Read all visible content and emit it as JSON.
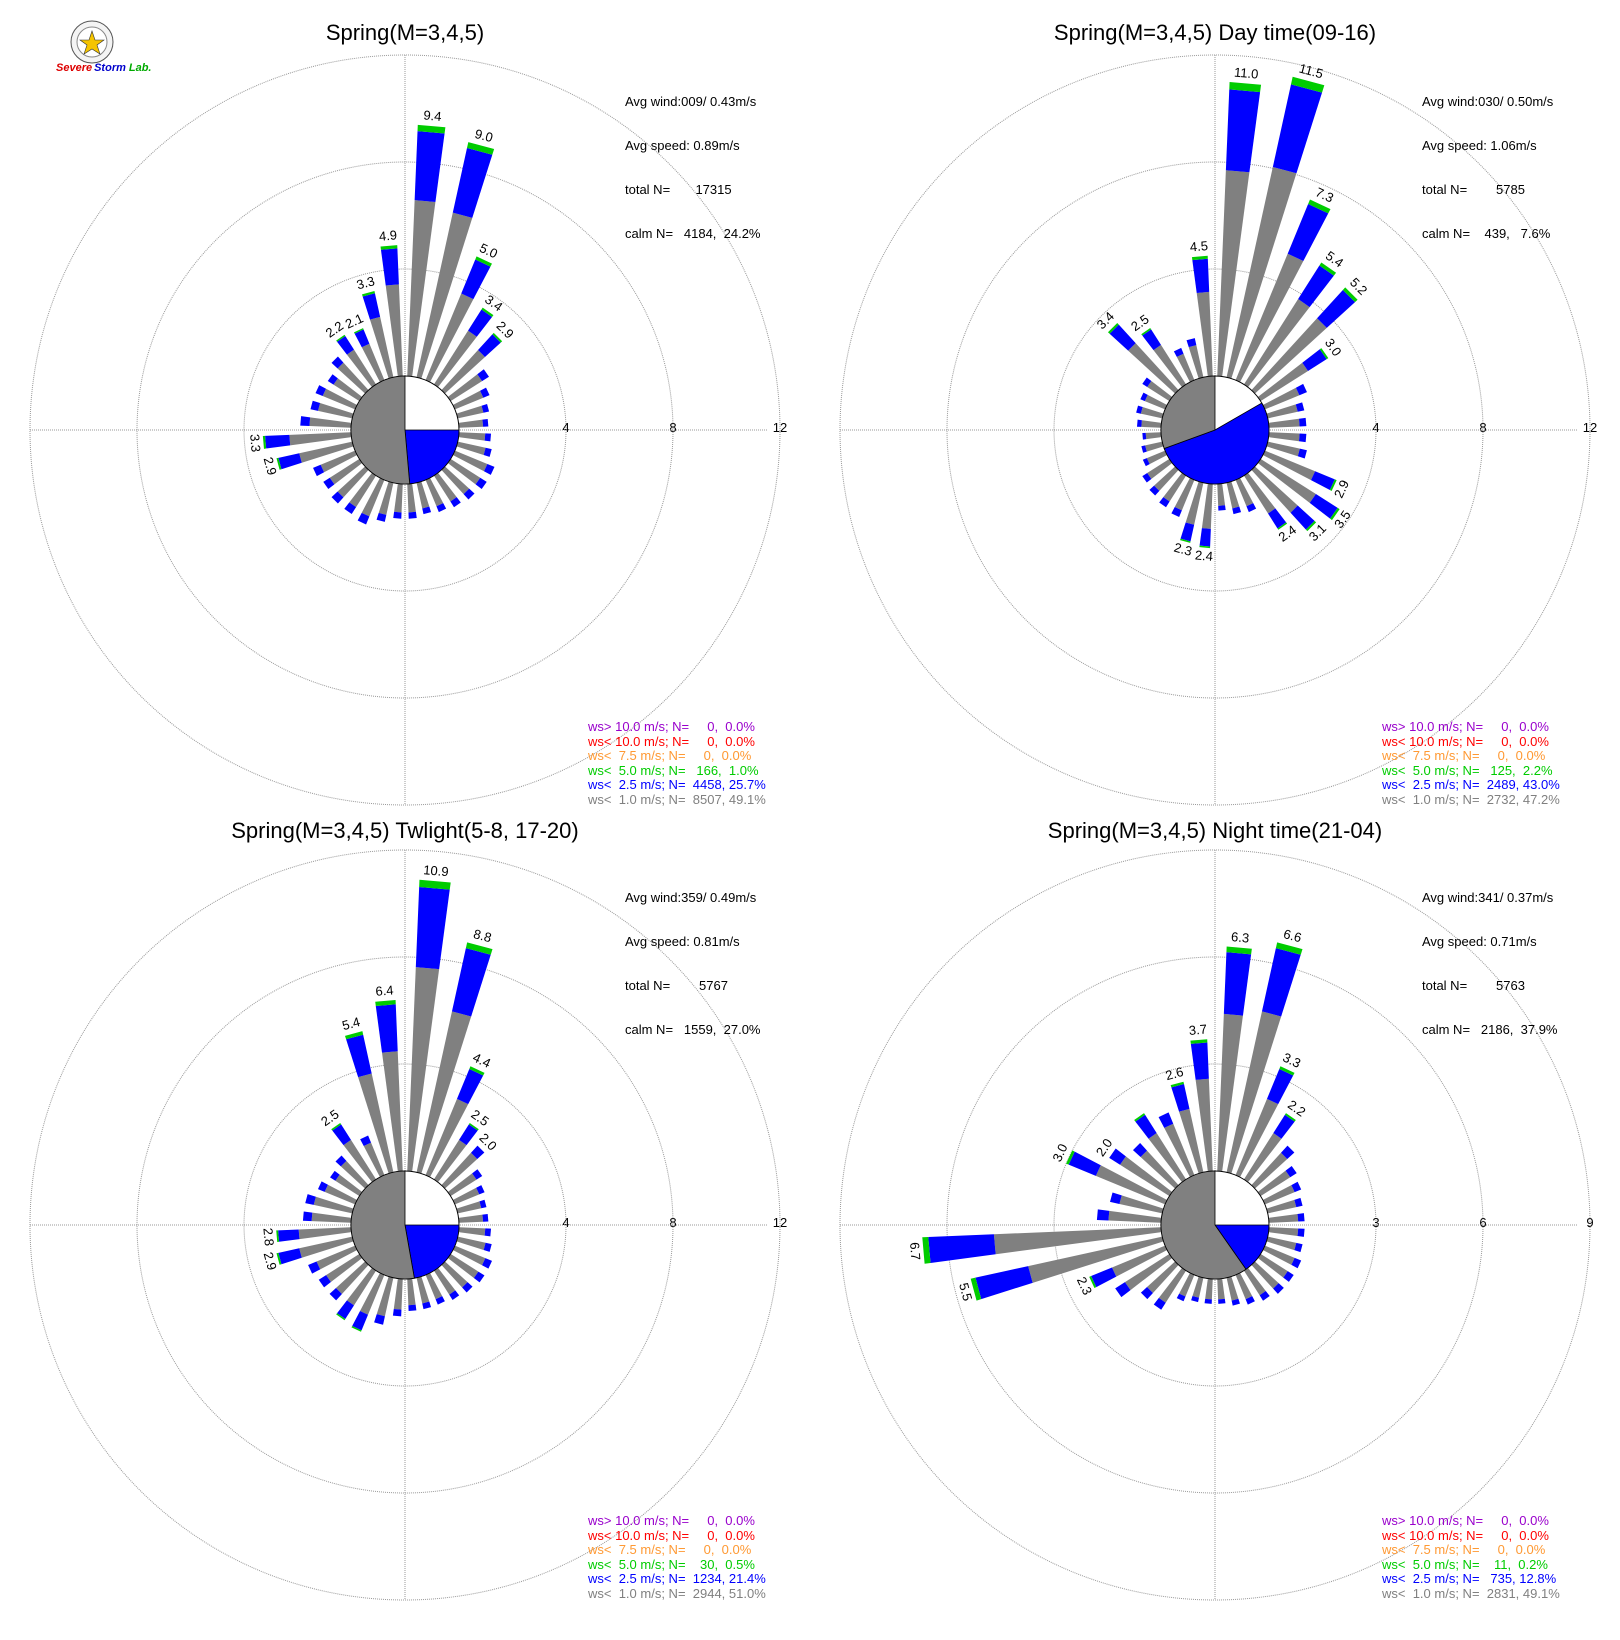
{
  "logo": {
    "text_severe": "Severe",
    "text_storm": "Storm",
    "text_lab": "Lab.",
    "colors": {
      "severe": "#dd0000",
      "storm": "#0000cc",
      "lab": "#00aa00"
    }
  },
  "colors": {
    "ws_lt_1": "#808080",
    "ws_lt_2_5": "#0000ff",
    "ws_lt_5": "#00cc00",
    "ws_lt_7_5": "#ff9933",
    "ws_lt_10": "#ff0000",
    "ws_gt_10": "#9900cc",
    "grid": "#666666"
  },
  "chart_data": [
    {
      "type": "polar-bar",
      "title": "Spring(M=3,4,5)",
      "stats": [
        "Avg wind:009/ 0.43m/s",
        "Avg speed: 0.89m/s",
        "total N=       17315",
        "calm N=   4184,  24.2%"
      ],
      "rings": [
        4,
        8,
        12
      ],
      "ring_labels": [
        "4",
        "8",
        "12"
      ],
      "calm_split": {
        "from": 90,
        "to": 175
      },
      "bars": [
        [
          5,
          9.4
        ],
        [
          15,
          9.0
        ],
        [
          25,
          5.0
        ],
        [
          35,
          3.4
        ],
        [
          45,
          2.9
        ],
        [
          55,
          1.7
        ],
        [
          65,
          1.4
        ],
        [
          75,
          1.2
        ],
        [
          85,
          1.1
        ],
        [
          95,
          1.2
        ],
        [
          105,
          1.3
        ],
        [
          115,
          1.6
        ],
        [
          125,
          1.6
        ],
        [
          135,
          1.5
        ],
        [
          145,
          1.4
        ],
        [
          155,
          1.3
        ],
        [
          165,
          1.2
        ],
        [
          175,
          1.3
        ],
        [
          185,
          1.3
        ],
        [
          195,
          1.5
        ],
        [
          205,
          1.8
        ],
        [
          215,
          1.7
        ],
        [
          225,
          1.7
        ],
        [
          235,
          1.6
        ],
        [
          245,
          1.7
        ],
        [
          255,
          2.9
        ],
        [
          265,
          3.3
        ],
        [
          275,
          1.9
        ],
        [
          285,
          1.6
        ],
        [
          295,
          1.6
        ],
        [
          305,
          1.4
        ],
        [
          315,
          1.7
        ],
        [
          325,
          2.2
        ],
        [
          335,
          2.1
        ],
        [
          345,
          3.3
        ],
        [
          355,
          4.9
        ]
      ],
      "bar_labels": [
        {
          "dir": 5,
          "text": "9.4"
        },
        {
          "dir": 15,
          "text": "9.0"
        },
        {
          "dir": 25,
          "text": "5.0"
        },
        {
          "dir": 35,
          "text": "3.4"
        },
        {
          "dir": 45,
          "text": "2.9"
        },
        {
          "dir": 255,
          "text": "2.9"
        },
        {
          "dir": 265,
          "text": "3.3"
        },
        {
          "dir": 325,
          "text": "2.2"
        },
        {
          "dir": 335,
          "text": "2.1"
        },
        {
          "dir": 345,
          "text": "3.3"
        },
        {
          "dir": 355,
          "text": "4.9"
        }
      ],
      "legend": [
        {
          "text": "ws> 10.0 m/s; N=     0,  0.0%",
          "color": "#9900cc"
        },
        {
          "text": "ws< 10.0 m/s; N=     0,  0.0%",
          "color": "#ff0000"
        },
        {
          "text": "ws<  7.5 m/s; N=     0,  0.0%",
          "color": "#ff9933"
        },
        {
          "text": "ws<  5.0 m/s; N=   166,  1.0%",
          "color": "#00cc00"
        },
        {
          "text": "ws<  2.5 m/s; N=  4458, 25.7%",
          "color": "#0000ff"
        },
        {
          "text": "ws<  1.0 m/s; N=  8507, 49.1%",
          "color": "#808080"
        }
      ]
    },
    {
      "type": "polar-bar",
      "title": "Spring(M=3,4,5) Day time(09-16)",
      "stats": [
        "Avg wind:030/ 0.50m/s",
        "Avg speed: 1.06m/s",
        "total N=        5785",
        "calm N=    439,   7.6%"
      ],
      "rings": [
        4,
        8,
        12
      ],
      "ring_labels": [
        "4",
        "8",
        "12"
      ],
      "calm_split": {
        "from": 60,
        "to": 250
      },
      "bars": [
        [
          5,
          11.0
        ],
        [
          15,
          11.5
        ],
        [
          25,
          7.3
        ],
        [
          35,
          5.4
        ],
        [
          45,
          5.2
        ],
        [
          55,
          3.0
        ],
        [
          65,
          1.7
        ],
        [
          75,
          1.4
        ],
        [
          85,
          1.4
        ],
        [
          95,
          1.4
        ],
        [
          105,
          1.5
        ],
        [
          115,
          2.9
        ],
        [
          125,
          3.5
        ],
        [
          135,
          3.1
        ],
        [
          145,
          2.4
        ],
        [
          155,
          1.3
        ],
        [
          165,
          1.2
        ],
        [
          175,
          1.0
        ],
        [
          185,
          2.4
        ],
        [
          195,
          2.3
        ],
        [
          205,
          1.5
        ],
        [
          215,
          1.4
        ],
        [
          225,
          1.3
        ],
        [
          235,
          1.2
        ],
        [
          245,
          0.9
        ],
        [
          255,
          0.8
        ],
        [
          265,
          0.7
        ],
        [
          275,
          0.9
        ],
        [
          285,
          1.0
        ],
        [
          295,
          1.0
        ],
        [
          305,
          1.2
        ],
        [
          315,
          3.4
        ],
        [
          325,
          2.5
        ],
        [
          335,
          1.3
        ],
        [
          345,
          1.5
        ],
        [
          355,
          4.5
        ]
      ],
      "bar_labels": [
        {
          "dir": 5,
          "text": "11.0"
        },
        {
          "dir": 15,
          "text": "11.5"
        },
        {
          "dir": 25,
          "text": "7.3"
        },
        {
          "dir": 35,
          "text": "5.4"
        },
        {
          "dir": 45,
          "text": "5.2"
        },
        {
          "dir": 55,
          "text": "3.0"
        },
        {
          "dir": 115,
          "text": "2.9"
        },
        {
          "dir": 125,
          "text": "3.5"
        },
        {
          "dir": 135,
          "text": "3.1"
        },
        {
          "dir": 145,
          "text": "2.4"
        },
        {
          "dir": 185,
          "text": "2.4"
        },
        {
          "dir": 195,
          "text": "2.3"
        },
        {
          "dir": 315,
          "text": "3.4"
        },
        {
          "dir": 325,
          "text": "2.5"
        },
        {
          "dir": 355,
          "text": "4.5"
        }
      ],
      "legend": [
        {
          "text": "ws> 10.0 m/s; N=     0,  0.0%",
          "color": "#9900cc"
        },
        {
          "text": "ws< 10.0 m/s; N=     0,  0.0%",
          "color": "#ff0000"
        },
        {
          "text": "ws<  7.5 m/s; N=     0,  0.0%",
          "color": "#ff9933"
        },
        {
          "text": "ws<  5.0 m/s; N=   125,  2.2%",
          "color": "#00cc00"
        },
        {
          "text": "ws<  2.5 m/s; N=  2489, 43.0%",
          "color": "#0000ff"
        },
        {
          "text": "ws<  1.0 m/s; N=  2732, 47.2%",
          "color": "#808080"
        }
      ]
    },
    {
      "type": "polar-bar",
      "title": "Spring(M=3,4,5) Twlight(5-8, 17-20)",
      "stats": [
        "Avg wind:359/ 0.49m/s",
        "Avg speed: 0.81m/s",
        "total N=        5767",
        "calm N=   1559,  27.0%"
      ],
      "rings": [
        4,
        8,
        12
      ],
      "ring_labels": [
        "4",
        "8",
        "12"
      ],
      "calm_split": {
        "from": 90,
        "to": 170
      },
      "bars": [
        [
          5,
          10.9
        ],
        [
          15,
          8.8
        ],
        [
          25,
          4.4
        ],
        [
          35,
          2.5
        ],
        [
          45,
          2.0
        ],
        [
          55,
          1.4
        ],
        [
          65,
          1.2
        ],
        [
          75,
          1.1
        ],
        [
          85,
          1.1
        ],
        [
          95,
          1.2
        ],
        [
          105,
          1.3
        ],
        [
          115,
          1.5
        ],
        [
          125,
          1.5
        ],
        [
          135,
          1.4
        ],
        [
          145,
          1.3
        ],
        [
          155,
          1.2
        ],
        [
          165,
          1.2
        ],
        [
          175,
          1.2
        ],
        [
          185,
          1.4
        ],
        [
          195,
          1.8
        ],
        [
          205,
          2.3
        ],
        [
          215,
          2.2
        ],
        [
          225,
          1.8
        ],
        [
          235,
          1.8
        ],
        [
          245,
          1.9
        ],
        [
          255,
          2.9
        ],
        [
          265,
          2.8
        ],
        [
          275,
          1.8
        ],
        [
          285,
          1.8
        ],
        [
          295,
          1.5
        ],
        [
          305,
          1.3
        ],
        [
          315,
          1.5
        ],
        [
          325,
          2.5
        ],
        [
          335,
          1.6
        ],
        [
          345,
          5.4
        ],
        [
          355,
          6.4
        ]
      ],
      "bar_labels": [
        {
          "dir": 5,
          "text": "10.9"
        },
        {
          "dir": 15,
          "text": "8.8"
        },
        {
          "dir": 25,
          "text": "4.4"
        },
        {
          "dir": 35,
          "text": "2.5"
        },
        {
          "dir": 45,
          "text": "2.0"
        },
        {
          "dir": 255,
          "text": "2.9"
        },
        {
          "dir": 265,
          "text": "2.8"
        },
        {
          "dir": 325,
          "text": "2.5"
        },
        {
          "dir": 345,
          "text": "5.4"
        },
        {
          "dir": 355,
          "text": "6.4"
        }
      ],
      "legend": [
        {
          "text": "ws> 10.0 m/s; N=     0,  0.0%",
          "color": "#9900cc"
        },
        {
          "text": "ws< 10.0 m/s; N=     0,  0.0%",
          "color": "#ff0000"
        },
        {
          "text": "ws<  7.5 m/s; N=     0,  0.0%",
          "color": "#ff9933"
        },
        {
          "text": "ws<  5.0 m/s; N=    30,  0.5%",
          "color": "#00cc00"
        },
        {
          "text": "ws<  2.5 m/s; N=  1234, 21.4%",
          "color": "#0000ff"
        },
        {
          "text": "ws<  1.0 m/s; N=  2944, 51.0%",
          "color": "#808080"
        }
      ]
    },
    {
      "type": "polar-bar",
      "title": "Spring(M=3,4,5) Night time(21-04)",
      "stats": [
        "Avg wind:341/ 0.37m/s",
        "Avg speed: 0.71m/s",
        "total N=        5763",
        "calm N=   2186,  37.9%"
      ],
      "rings": [
        3,
        6,
        9
      ],
      "ring_labels": [
        "3",
        "6",
        "9"
      ],
      "calm_split": {
        "from": 90,
        "to": 145
      },
      "bars": [
        [
          5,
          6.3
        ],
        [
          15,
          6.6
        ],
        [
          25,
          3.3
        ],
        [
          35,
          2.2
        ],
        [
          45,
          1.5
        ],
        [
          55,
          1.2
        ],
        [
          65,
          1.1
        ],
        [
          75,
          1.0
        ],
        [
          85,
          1.0
        ],
        [
          95,
          1.0
        ],
        [
          105,
          1.0
        ],
        [
          115,
          1.1
        ],
        [
          125,
          1.1
        ],
        [
          135,
          1.1
        ],
        [
          145,
          1.0
        ],
        [
          155,
          0.9
        ],
        [
          165,
          0.8
        ],
        [
          175,
          0.7
        ],
        [
          185,
          0.7
        ],
        [
          195,
          0.7
        ],
        [
          205,
          0.8
        ],
        [
          215,
          1.3
        ],
        [
          225,
          1.3
        ],
        [
          235,
          1.8
        ],
        [
          245,
          2.3
        ],
        [
          255,
          5.5
        ],
        [
          265,
          6.7
        ],
        [
          275,
          1.8
        ],
        [
          285,
          1.5
        ],
        [
          295,
          3.0
        ],
        [
          305,
          2.0
        ],
        [
          315,
          1.6
        ],
        [
          325,
          2.2
        ],
        [
          335,
          1.9
        ],
        [
          345,
          2.6
        ],
        [
          355,
          3.7
        ]
      ],
      "bar_labels": [
        {
          "dir": 5,
          "text": "6.3"
        },
        {
          "dir": 15,
          "text": "6.6"
        },
        {
          "dir": 25,
          "text": "3.3"
        },
        {
          "dir": 35,
          "text": "2.2"
        },
        {
          "dir": 245,
          "text": "2.3"
        },
        {
          "dir": 255,
          "text": "5.5"
        },
        {
          "dir": 265,
          "text": "6.7"
        },
        {
          "dir": 295,
          "text": "3.0"
        },
        {
          "dir": 305,
          "text": "2.0"
        },
        {
          "dir": 345,
          "text": "2.6"
        },
        {
          "dir": 355,
          "text": "3.7"
        }
      ],
      "legend": [
        {
          "text": "ws> 10.0 m/s; N=     0,  0.0%",
          "color": "#9900cc"
        },
        {
          "text": "ws< 10.0 m/s; N=     0,  0.0%",
          "color": "#ff0000"
        },
        {
          "text": "ws<  7.5 m/s; N=     0,  0.0%",
          "color": "#ff9933"
        },
        {
          "text": "ws<  5.0 m/s; N=    11,  0.2%",
          "color": "#00cc00"
        },
        {
          "text": "ws<  2.5 m/s; N=   735, 12.8%",
          "color": "#0000ff"
        },
        {
          "text": "ws<  1.0 m/s; N=  2831, 49.1%",
          "color": "#808080"
        }
      ]
    }
  ]
}
